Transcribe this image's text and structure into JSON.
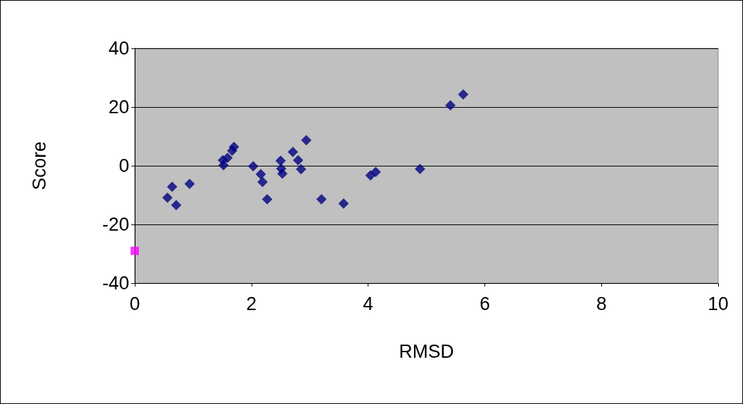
{
  "chart_data": {
    "type": "scatter",
    "xlabel": "RMSD",
    "ylabel": "Score",
    "xlim": [
      0,
      10
    ],
    "xticks": [
      0,
      2,
      4,
      6,
      8,
      10
    ],
    "ylim": [
      -40,
      40
    ],
    "yticks": [
      -40,
      -20,
      0,
      20,
      40
    ],
    "grid": "y",
    "series": [
      {
        "color": "#000080",
        "marker": "diamond",
        "x": [
          0.64,
          0.56,
          0.71,
          0.94,
          1.52,
          1.51,
          1.59,
          1.67,
          1.7,
          2.03,
          2.16,
          2.19,
          2.27,
          2.5,
          2.51,
          2.53,
          2.71,
          2.8,
          2.85,
          2.94,
          3.2,
          3.58,
          4.04,
          4.13,
          4.89,
          5.41,
          5.63
        ],
        "values": [
          -7.2,
          -10.9,
          -13.4,
          -6.2,
          0.2,
          1.9,
          2.7,
          5.1,
          6.4,
          -0.2,
          -2.9,
          -5.5,
          -11.4,
          1.7,
          -1,
          -2.7,
          4.7,
          1.9,
          -1.2,
          8.7,
          -11.4,
          -12.9,
          -3.3,
          -2.1,
          -1.1,
          20.6,
          24.3
        ]
      },
      {
        "color": "#ff00ff",
        "marker": "square",
        "x": [
          0
        ],
        "values": [
          -29
        ]
      }
    ]
  }
}
